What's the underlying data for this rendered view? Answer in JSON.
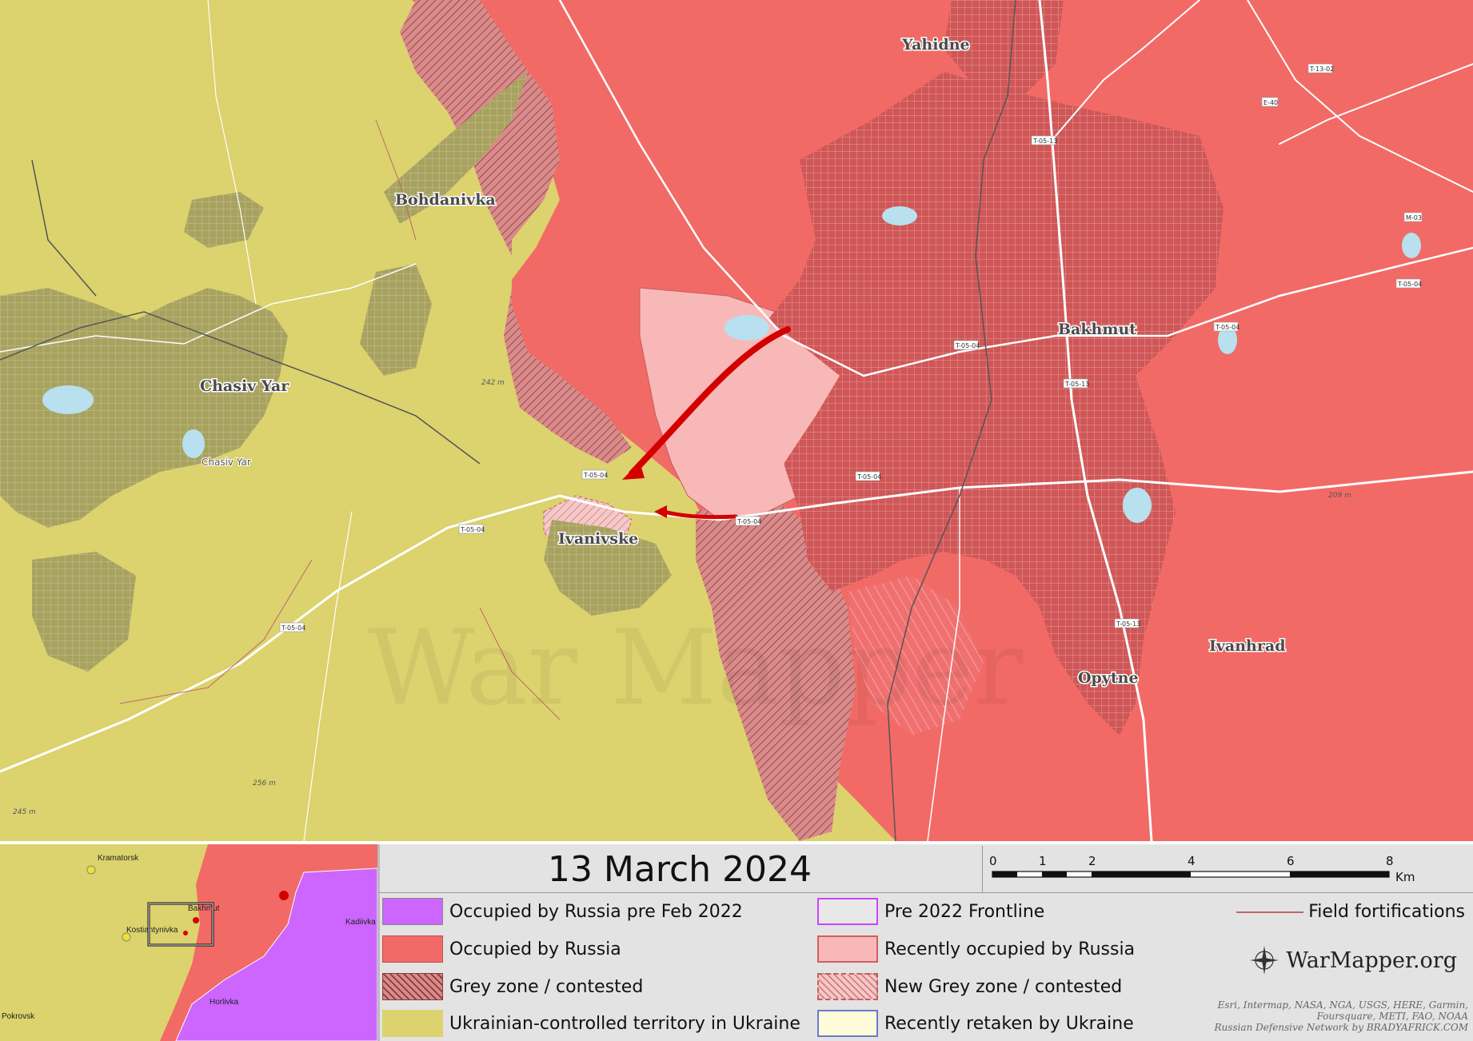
{
  "map": {
    "towns": {
      "yahidne": "Yahidne",
      "bohdanivka": "Bohdanivka",
      "chasiv_yar_large": "Chasiv Yar",
      "chasiv_yar_small": "Chasiv Yar",
      "bakhmut": "Bakhmut",
      "ivanivske": "Ivanivske",
      "ivanhrad": "Ivanhrad",
      "opytne": "Opytne"
    },
    "road_labels": [
      "T-13-02",
      "E-40",
      "T-05-13",
      "M-03",
      "T-05-04",
      "T-05-04",
      "T-05-04",
      "T-05-13",
      "T-05-04",
      "T-05-04",
      "T-05-04",
      "T-05-04",
      "T-05-04",
      "T-05-13"
    ],
    "elevations": [
      "242 m",
      "209 m",
      "256 m",
      "245 m"
    ],
    "watermark": "War Mapper",
    "colors": {
      "ukraine": "#dcd26e",
      "russia": "#f26a66",
      "grey_zone": "#c46c6c",
      "recent_russia": "#f9b8b8",
      "urban_ukraine": "#a8a261",
      "urban_russia": "#d05a5a",
      "arrow": "#d40000"
    }
  },
  "inset": {
    "labels": {
      "kramatorsk": "Kramatorsk",
      "bakhmut": "Bakhmut",
      "kostiantynivka": "Kostiantynivka",
      "kadiivka": "Kadiivka",
      "horlivka": "Horlivka",
      "pokrovsk": "Pokrovsk"
    }
  },
  "title": "13 March 2024",
  "scale": {
    "ticks": [
      "0",
      "1",
      "2",
      "4",
      "6",
      "8"
    ],
    "unit": "Km"
  },
  "legend": {
    "pre2022": "Occupied by Russia pre Feb 2022",
    "occupied": "Occupied by Russia",
    "grey": "Grey zone / contested",
    "ukraine": "Ukrainian-controlled territory in Ukraine",
    "frontline": "Pre 2022 Frontline",
    "recent_occupied": "Recently occupied by Russia",
    "new_grey": "New Grey zone / contested",
    "retaken": "Recently retaken by Ukraine",
    "field_fortifications": "Field fortifications",
    "colors": {
      "pre2022": "#cc66ff",
      "occupied": "#f26a66",
      "grey": "#c46c6c",
      "ukraine": "#dcd26e",
      "frontline": "#cc44ff",
      "recent_occupied": "#f9b8b8",
      "new_grey": "#f6c0c0",
      "retaken": "#fefcd8"
    }
  },
  "branding": {
    "site": "WarMapper.org",
    "credits": [
      "Esri, Intermap, NASA, NGA, USGS, HERE, Garmin,",
      "Foursquare, METI, FAO, NOAA",
      "Russian Defensive Network by BRADYAFRICK.COM"
    ]
  }
}
